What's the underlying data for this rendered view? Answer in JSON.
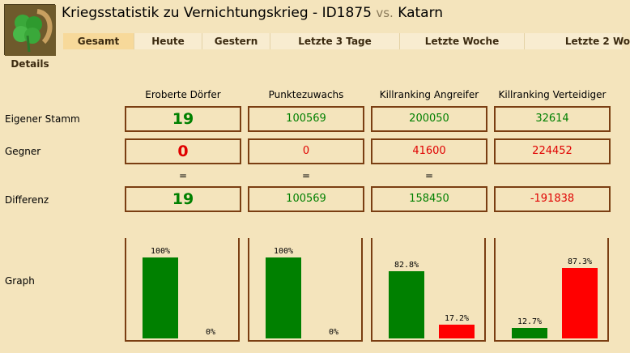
{
  "header": {
    "title_main": "Kriegsstatistik zu Vernichtungskrieg - ID1875",
    "title_vs": "vs.",
    "title_opponent": "Katarn",
    "details_label": "Details"
  },
  "tabs": [
    {
      "label": "Gesamt",
      "active": true
    },
    {
      "label": "Heute",
      "active": false
    },
    {
      "label": "Gestern",
      "active": false
    },
    {
      "label": "Letzte 3 Tage",
      "active": false
    },
    {
      "label": "Letzte Woche",
      "active": false
    },
    {
      "label": "Letzte 2 Wo",
      "active": false
    }
  ],
  "columns": [
    "Eroberte Dörfer",
    "Punktezuwachs",
    "Killranking Angreifer",
    "Killranking Verteidiger"
  ],
  "rows": {
    "own": {
      "label": "Eigener Stamm",
      "values": [
        "19",
        "100569",
        "200050",
        "32614"
      ]
    },
    "enemy": {
      "label": "Gegner",
      "values": [
        "0",
        "0",
        "41600",
        "224452"
      ]
    },
    "equals": [
      "=",
      "=",
      "="
    ],
    "diff": {
      "label": "Differenz",
      "values": [
        "19",
        "100569",
        "158450",
        "-191838"
      ]
    },
    "graph": {
      "label": "Graph"
    }
  },
  "colors": {
    "own": "#008000",
    "enemy": "#ff0000",
    "border": "#7a3e12",
    "background": "#f4e4bc"
  },
  "chart_data": {
    "type": "bar",
    "series": [
      {
        "values": [
          100,
          100,
          82.8,
          12.7
        ]
      },
      {
        "values": [
          0,
          0,
          17.2,
          87.3
        ]
      }
    ],
    "labels": [
      [
        "100%",
        "0%"
      ],
      [
        "100%",
        "0%"
      ],
      [
        "82.8%",
        "17.2%"
      ],
      [
        "12.7%",
        "87.3%"
      ]
    ],
    "ylim": [
      0,
      100
    ]
  }
}
